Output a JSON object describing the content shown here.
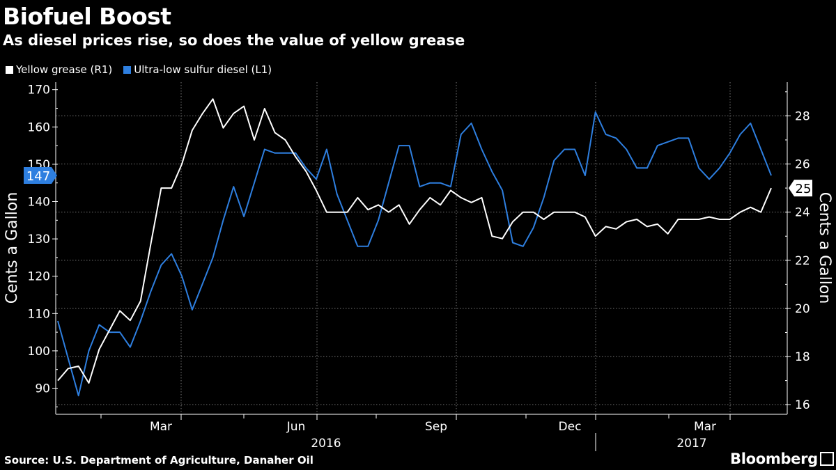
{
  "title": "Biofuel Boost",
  "subtitle": "As diesel prices rise, so does the value of yellow grease",
  "source": "Source: U.S. Department of Agriculture, Danaher Oil",
  "brand": "Bloomberg",
  "colors": {
    "yellow_grease": "#ffffff",
    "diesel": "#2e7fe0",
    "grid": "#666666",
    "background": "#000000"
  },
  "chart_data": {
    "type": "line",
    "legend": [
      {
        "label": "Yellow grease (R1)",
        "color": "#ffffff"
      },
      {
        "label": "Ultra-low sulfur diesel (L1)",
        "color": "#2e7fe0"
      }
    ],
    "left_axis": {
      "label": "Cents a Gallon",
      "min": 83,
      "max": 172,
      "ticks": [
        "90",
        "100",
        "110",
        "120",
        "130",
        "140",
        "150",
        "160",
        "170"
      ],
      "current": "147"
    },
    "right_axis": {
      "label": "Cents a Gallon",
      "min": 15.6,
      "max": 29.4,
      "ticks": [
        "16",
        "18",
        "20",
        "22",
        "24",
        "26",
        "28"
      ],
      "current": "25"
    },
    "x_axis": {
      "month_labels": [
        "Mar",
        "Jun",
        "Sep",
        "Dec",
        "Mar"
      ],
      "year_labels": [
        "2016",
        "2017"
      ]
    },
    "series": [
      {
        "name": "Ultra-low sulfur diesel (L1)",
        "axis": "left",
        "values": [
          108,
          98,
          88,
          100,
          107,
          105,
          105,
          101,
          108,
          116,
          123,
          126,
          120,
          111,
          118,
          125,
          135,
          144,
          136,
          145,
          154,
          153,
          153,
          153,
          149,
          146,
          154,
          142,
          135,
          128,
          128,
          135,
          145,
          155,
          155,
          144,
          145,
          145,
          144,
          158,
          161,
          154,
          148,
          143,
          129,
          128,
          133,
          141,
          151,
          154,
          154,
          147,
          164,
          158,
          157,
          154,
          149,
          149,
          155,
          156,
          157,
          157,
          149,
          146,
          149,
          153,
          158,
          161,
          154,
          147
        ],
        "range": [
          88,
          164
        ]
      },
      {
        "name": "Yellow grease (R1)",
        "axis": "right",
        "values": [
          17,
          17.5,
          17.6,
          16.9,
          18.3,
          19.1,
          19.9,
          19.5,
          20.3,
          22.7,
          25,
          25,
          26,
          27.4,
          28.1,
          28.7,
          27.5,
          28.1,
          28.4,
          27,
          28.3,
          27.3,
          27,
          26.3,
          25.7,
          24.9,
          24,
          24,
          24,
          24.6,
          24.1,
          24.3,
          24,
          24.3,
          23.5,
          24.1,
          24.6,
          24.3,
          24.9,
          24.6,
          24.4,
          24.6,
          23,
          22.9,
          23.6,
          24,
          24,
          23.7,
          24,
          24,
          24,
          23.8,
          23,
          23.4,
          23.3,
          23.6,
          23.7,
          23.4,
          23.5,
          23.1,
          23.7,
          23.7,
          23.7,
          23.8,
          23.7,
          23.7,
          24,
          24.2,
          24,
          25
        ],
        "range": [
          16.9,
          28.7
        ]
      }
    ]
  }
}
